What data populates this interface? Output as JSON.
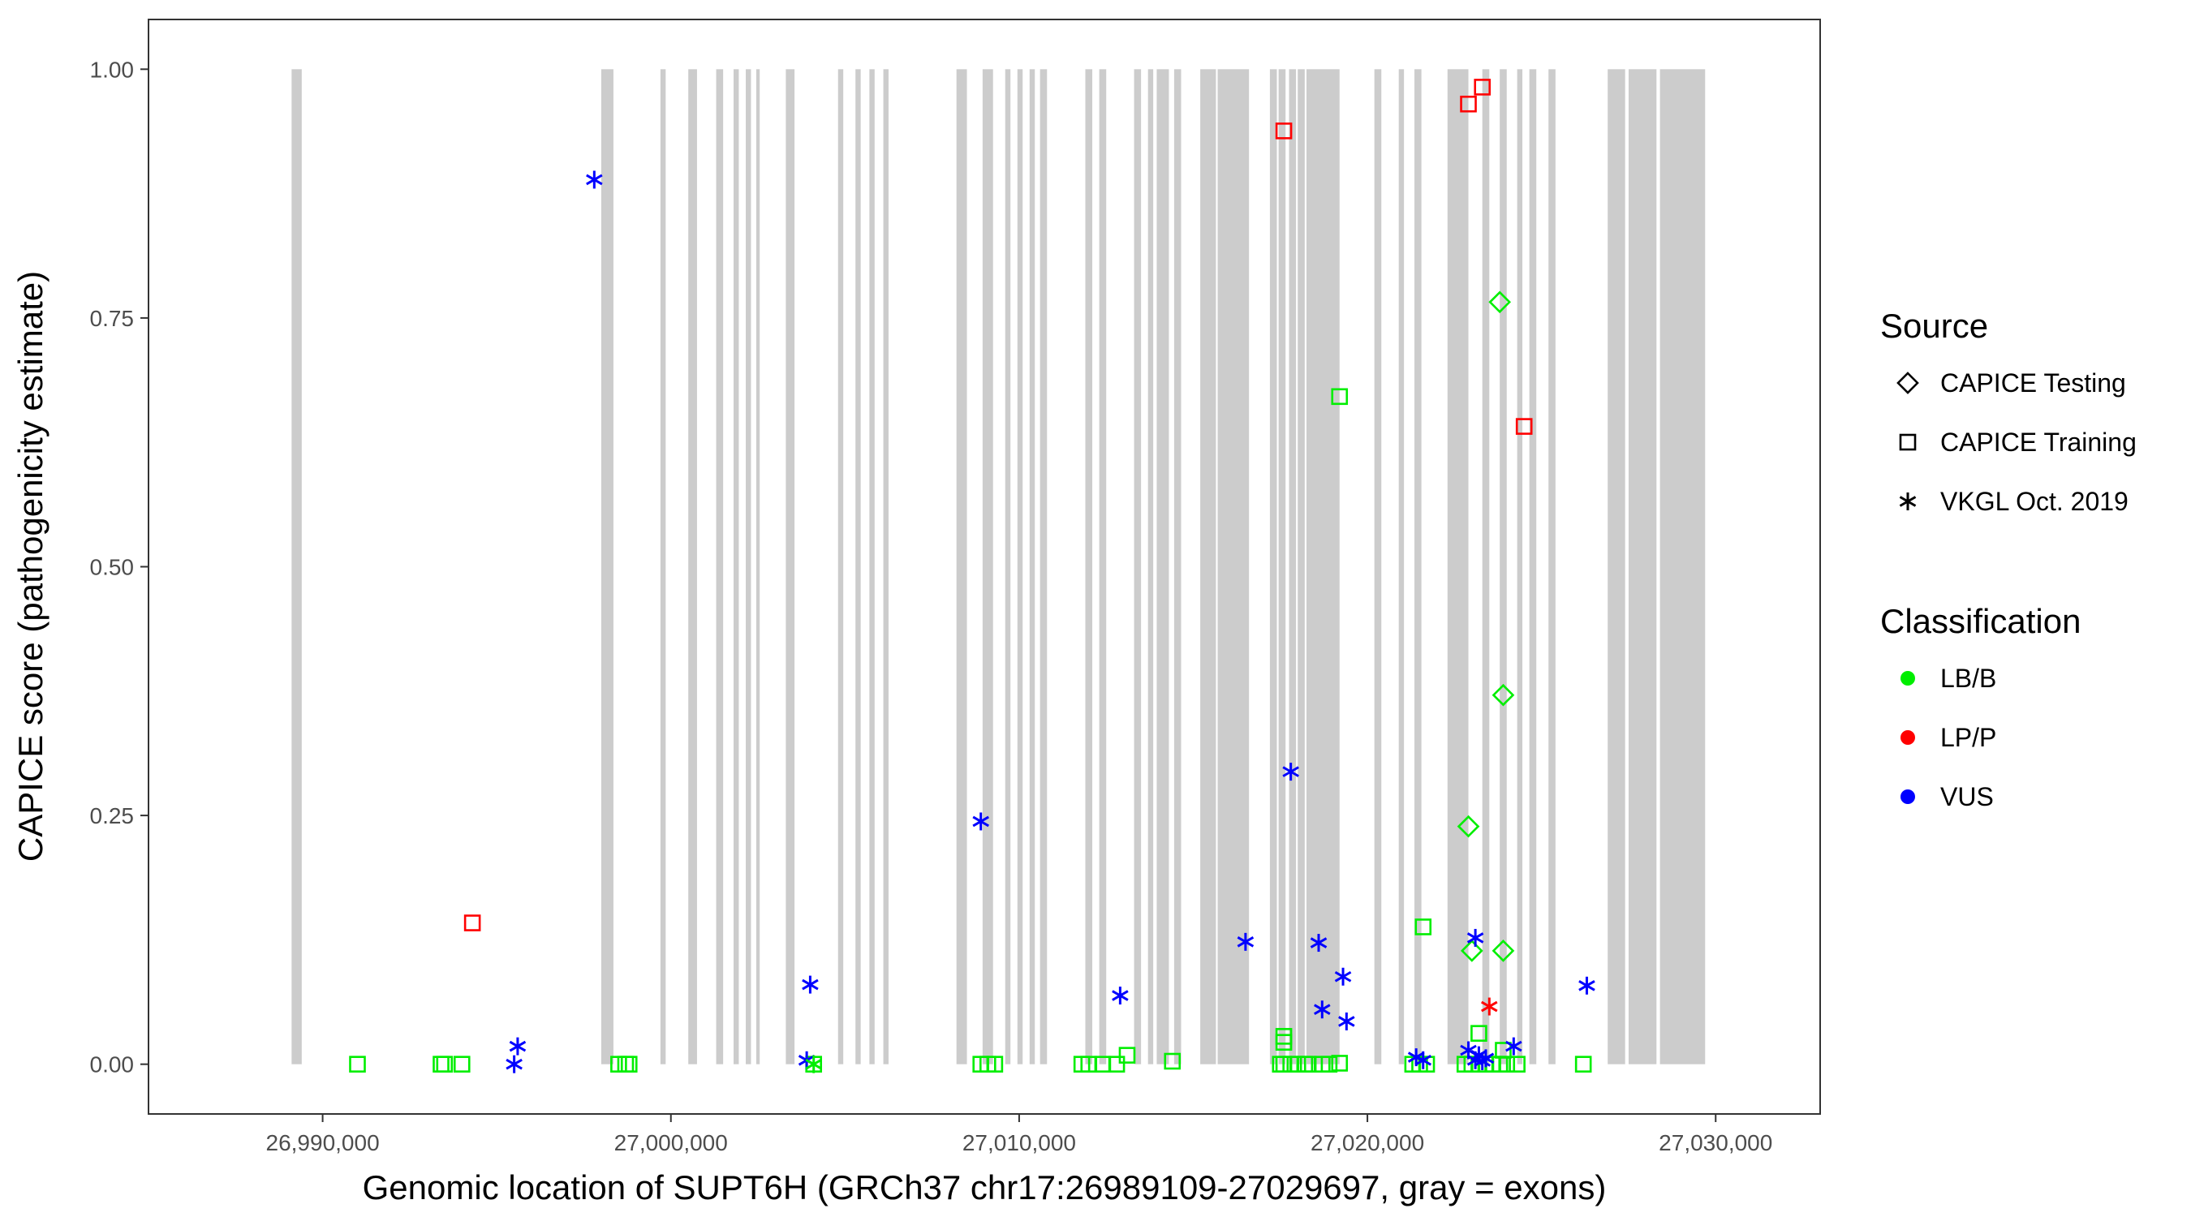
{
  "chart_data": {
    "type": "scatter",
    "xlabel": "Genomic location of SUPT6H (GRCh37 chr17:26989109-27029697, gray = exons)",
    "ylabel": "CAPICE score (pathogenicity estimate)",
    "xlim": [
      26985000,
      27033000
    ],
    "ylim": [
      -0.05,
      1.05
    ],
    "x_ticks": [
      26990000,
      27000000,
      27010000,
      27020000,
      27030000
    ],
    "x_tick_labels": [
      "26,990,000",
      "27,000,000",
      "27,010,000",
      "27,020,000",
      "27,030,000"
    ],
    "y_ticks": [
      0,
      0.25,
      0.5,
      0.75,
      1.0
    ],
    "y_tick_labels": [
      "0.00",
      "0.25",
      "0.50",
      "0.75",
      "1.00"
    ],
    "grid": false,
    "exon_color": "#cccccc",
    "exons": [
      [
        26989109,
        26989400
      ],
      [
        26998000,
        26998350
      ],
      [
        26999700,
        26999850
      ],
      [
        27000500,
        27000750
      ],
      [
        27001300,
        27001500
      ],
      [
        27001800,
        27001950
      ],
      [
        27002150,
        27002300
      ],
      [
        27002450,
        27002550
      ],
      [
        27003300,
        27003550
      ],
      [
        27004800,
        27004950
      ],
      [
        27005300,
        27005450
      ],
      [
        27005700,
        27005850
      ],
      [
        27006100,
        27006250
      ],
      [
        27008200,
        27008500
      ],
      [
        27008950,
        27009250
      ],
      [
        27009600,
        27009750
      ],
      [
        27009950,
        27010100
      ],
      [
        27010300,
        27010450
      ],
      [
        27010600,
        27010800
      ],
      [
        27011900,
        27012100
      ],
      [
        27012300,
        27012500
      ],
      [
        27013300,
        27013500
      ],
      [
        27013700,
        27013850
      ],
      [
        27013950,
        27014300
      ],
      [
        27014450,
        27014650
      ],
      [
        27015200,
        27015650
      ],
      [
        27015700,
        27016600
      ],
      [
        27017200,
        27017400
      ],
      [
        27017450,
        27017650
      ],
      [
        27017750,
        27017950
      ],
      [
        27018000,
        27018200
      ],
      [
        27018250,
        27019200
      ],
      [
        27020200,
        27020400
      ],
      [
        27020900,
        27021050
      ],
      [
        27021350,
        27021550
      ],
      [
        27022300,
        27022900
      ],
      [
        27023300,
        27023500
      ],
      [
        27023800,
        27024000
      ],
      [
        27024300,
        27024450
      ],
      [
        27024650,
        27024850
      ],
      [
        27025200,
        27025400
      ],
      [
        27026900,
        27027400
      ],
      [
        27027500,
        27028300
      ],
      [
        27028400,
        27029697
      ]
    ],
    "series": [
      {
        "source": "CAPICE Testing",
        "classification": "LB/B",
        "x": [
          27023800,
          27023900,
          27022900,
          27023000,
          27023900
        ],
        "y": [
          0.766,
          0.371,
          0.239,
          0.114,
          0.114
        ]
      },
      {
        "source": "CAPICE Training",
        "classification": "LP/P",
        "x": [
          27017600,
          27022900,
          27023300,
          27024500,
          26994300
        ],
        "y": [
          0.938,
          0.965,
          0.982,
          0.641,
          0.142
        ]
      },
      {
        "source": "CAPICE Training",
        "classification": "LB/B",
        "x": [
          27019200,
          27021600,
          27017600,
          27017600,
          27023200,
          27023900,
          26991000,
          26993400,
          26993500,
          26994000,
          26998500,
          26998700,
          26998800,
          27004100,
          27008900,
          27009100,
          27009300,
          27011800,
          27012000,
          27012400,
          27012800,
          27013100,
          27014400,
          27017500,
          27017600,
          27017800,
          27018000,
          27018200,
          27018300,
          27018700,
          27018900,
          27019200,
          27021300,
          27021500,
          27021700,
          27022800,
          27023000,
          27023200,
          27023400,
          27023600,
          27023800,
          27024000,
          27024300,
          27026200
        ],
        "y": [
          0.671,
          0.138,
          0.028,
          0.022,
          0.031,
          0.014,
          0.0,
          0.0,
          0.0,
          0.0,
          0.0,
          0.0,
          0.0,
          0.0,
          0.0,
          0.0,
          0.0,
          0.0,
          0.0,
          0.0,
          0.0,
          0.009,
          0.003,
          0.0,
          0.0,
          0.0,
          0.0,
          0.0,
          0.0,
          0.0,
          0.0,
          0.001,
          0.0,
          0.0,
          0.0,
          0.0,
          0.0,
          0.0,
          0.0,
          0.0,
          0.0,
          0.0,
          0.0,
          0.0
        ]
      },
      {
        "source": "VKGL Oct. 2019",
        "classification": "VUS",
        "x": [
          26997800,
          27008900,
          27017800,
          27004000,
          27012900,
          27016500,
          27018600,
          27019300,
          27023100,
          27018700,
          27019400,
          26995500,
          26995600,
          27003900,
          27021400,
          27021600,
          27022900,
          27023100,
          27023200,
          27023300,
          27023400,
          27024200,
          27026300
        ],
        "y": [
          0.889,
          0.244,
          0.294,
          0.08,
          0.069,
          0.123,
          0.122,
          0.088,
          0.127,
          0.055,
          0.043,
          0.0,
          0.018,
          0.004,
          0.007,
          0.004,
          0.014,
          0.004,
          0.009,
          0.003,
          0.006,
          0.018,
          0.079
        ]
      },
      {
        "source": "VKGL Oct. 2019",
        "classification": "LP/P",
        "x": [
          27023500
        ],
        "y": [
          0.058
        ]
      },
      {
        "source": "VKGL Oct. 2019",
        "classification": "LB/B",
        "x": [
          27004100
        ],
        "y": [
          0.0
        ]
      }
    ],
    "legend_placement": "right",
    "legend": {
      "source_title": "Source",
      "sources": [
        {
          "label": "CAPICE Testing",
          "shape": "diamond"
        },
        {
          "label": "CAPICE Training",
          "shape": "square"
        },
        {
          "label": "VKGL Oct. 2019",
          "shape": "asterisk"
        }
      ],
      "classification_title": "Classification",
      "classifications": [
        {
          "label": "LB/B",
          "color": "#00ee00"
        },
        {
          "label": "LP/P",
          "color": "#ff0000"
        },
        {
          "label": "VUS",
          "color": "#0000ff"
        }
      ]
    }
  }
}
